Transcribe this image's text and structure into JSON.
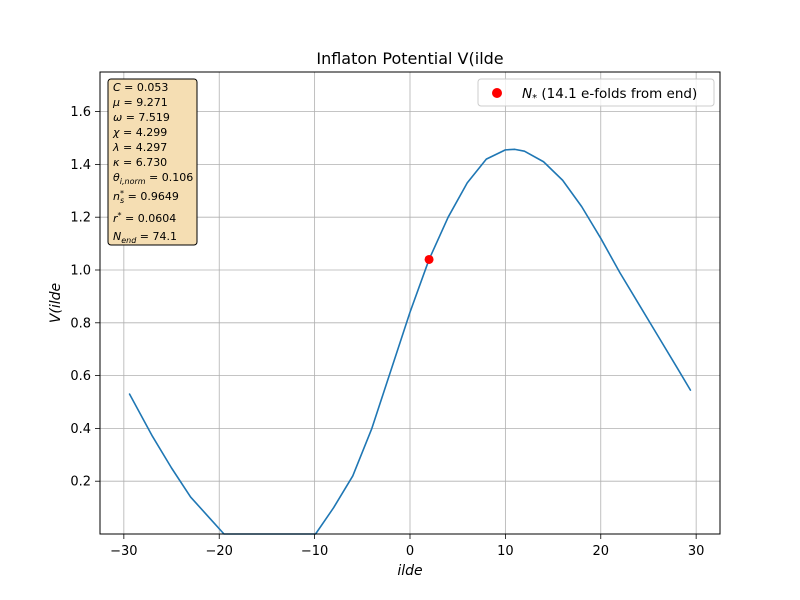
{
  "chart_data": {
    "type": "line",
    "title": "Inflaton Potential V(ilde",
    "xlabel": "ilde",
    "ylabel": "V(ilde",
    "xlim": [
      -32.5,
      32.5
    ],
    "ylim": [
      0.0,
      1.75
    ],
    "xticks": [
      -30,
      -20,
      -10,
      0,
      10,
      20,
      30
    ],
    "yticks": [
      0.2,
      0.4,
      0.6,
      0.8,
      1.0,
      1.2,
      1.4,
      1.6
    ],
    "xtick_labels": [
      "−30",
      "−20",
      "−10",
      "0",
      "10",
      "20",
      "30"
    ],
    "ytick_labels": [
      "0.2",
      "0.4",
      "0.6",
      "0.8",
      "1.0",
      "1.2",
      "1.4",
      "1.6"
    ],
    "grid": true,
    "legend_position": "top-right",
    "series": [
      {
        "color": "#1f77b4",
        "points": [
          [
            -29.4,
            0.53
          ],
          [
            -27,
            0.37
          ],
          [
            -25,
            0.25
          ],
          [
            -23,
            0.14
          ],
          [
            -21,
            0.06
          ],
          [
            -19.5,
            0.0
          ],
          [
            -15,
            0.0
          ],
          [
            -9.9,
            0.0
          ],
          [
            -8,
            0.1
          ],
          [
            -6,
            0.22
          ],
          [
            -4,
            0.4
          ],
          [
            -2,
            0.62
          ],
          [
            0,
            0.84
          ],
          [
            2,
            1.04
          ],
          [
            4,
            1.2
          ],
          [
            6,
            1.33
          ],
          [
            8,
            1.42
          ],
          [
            10,
            1.455
          ],
          [
            11,
            1.457
          ],
          [
            12,
            1.45
          ],
          [
            14,
            1.41
          ],
          [
            16,
            1.34
          ],
          [
            18,
            1.24
          ],
          [
            20,
            1.12
          ],
          [
            22,
            0.99
          ],
          [
            24,
            0.87
          ],
          [
            26,
            0.75
          ],
          [
            28,
            0.63
          ],
          [
            29.4,
            0.545
          ]
        ]
      }
    ],
    "marker": {
      "x": 2.0,
      "y": 1.04,
      "color": "#ff0000",
      "legend_label": "N₊ (14.1 e-folds from end)",
      "legend_symbol": "N",
      "legend_subscript": "*",
      "legend_rest": " (14.1 e-folds from end)"
    },
    "parameters": [
      {
        "symbol": "C",
        "sub": "",
        "sup": "",
        "value": "0.053"
      },
      {
        "symbol": "μ",
        "sub": "",
        "sup": "",
        "value": "9.271"
      },
      {
        "symbol": "ω",
        "sub": "",
        "sup": "",
        "value": "7.519"
      },
      {
        "symbol": "χ",
        "sub": "",
        "sup": "",
        "value": "4.299"
      },
      {
        "symbol": "λ",
        "sub": "",
        "sup": "",
        "value": "4.297"
      },
      {
        "symbol": "κ",
        "sub": "",
        "sup": "",
        "value": "6.730"
      },
      {
        "symbol": "θ",
        "sub": "i,norm",
        "sup": "",
        "value": "0.106"
      },
      {
        "symbol": "n",
        "sub": "s",
        "sup": "*",
        "value": "0.9649"
      },
      {
        "symbol": "r",
        "sub": "",
        "sup": "*",
        "value": "0.0604"
      },
      {
        "symbol": "N",
        "sub": "end",
        "sup": "",
        "value": "74.1"
      }
    ],
    "colors": {
      "line": "#1f77b4",
      "marker": "#ff0000",
      "grid": "#b0b0b0",
      "param_box_fill": "#f5deb3",
      "param_box_stroke": "#000000"
    }
  }
}
